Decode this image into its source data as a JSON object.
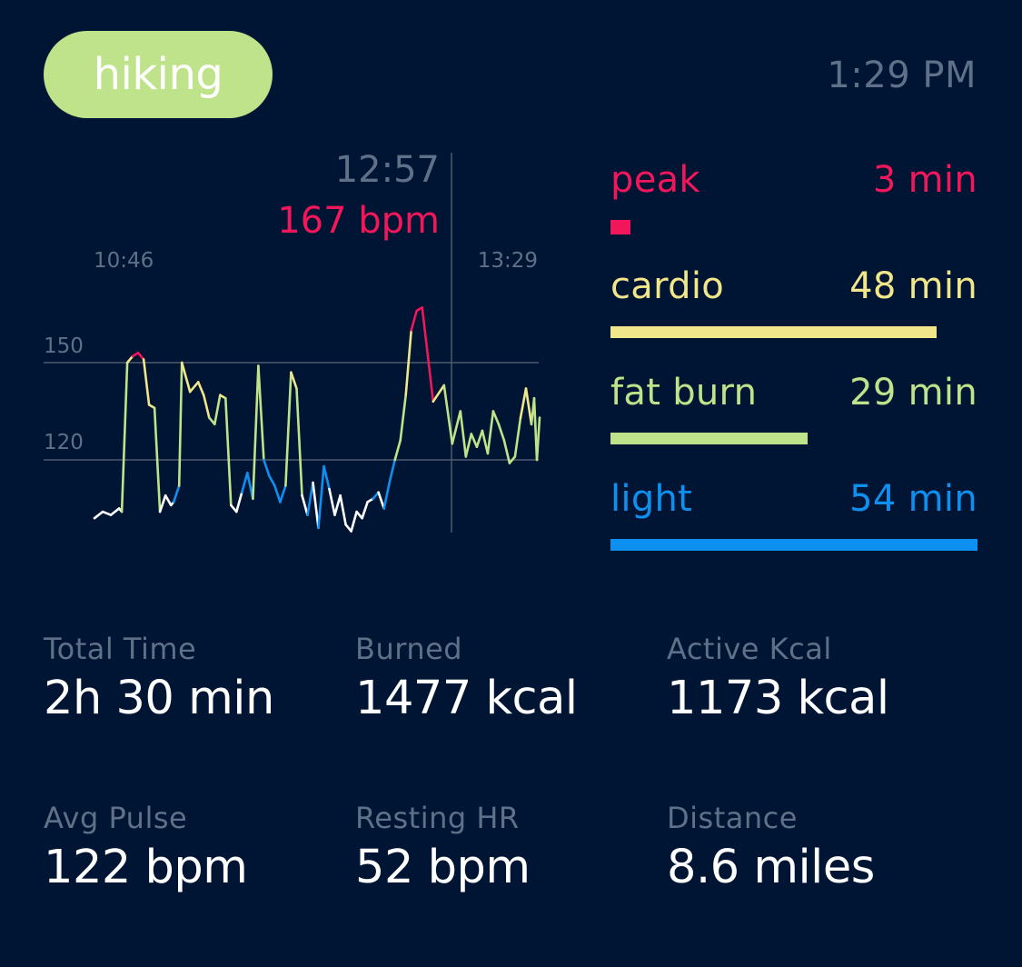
{
  "header": {
    "activity": "hiking",
    "time": "1:29 PM"
  },
  "colors": {
    "background": "#001533",
    "peak": "#f2165a",
    "cardio": "#f2e68a",
    "fat_burn": "#bee38a",
    "light": "#0e90f0",
    "below": "#ffffff",
    "muted": "#5f7188",
    "grid": "#4a5b70"
  },
  "zones": [
    {
      "id": "peak",
      "label": "peak",
      "value": "3 min",
      "minutes": 3,
      "color": "#f2165a"
    },
    {
      "id": "cardio",
      "label": "cardio",
      "value": "48 min",
      "minutes": 48,
      "color": "#f2e68a"
    },
    {
      "id": "fat-burn",
      "label": "fat burn",
      "value": "29 min",
      "minutes": 29,
      "color": "#bee38a"
    },
    {
      "id": "light",
      "label": "light",
      "value": "54 min",
      "minutes": 54,
      "color": "#0e90f0"
    }
  ],
  "stats": [
    {
      "id": "total-time",
      "label": "Total Time",
      "value": "2h 30 min"
    },
    {
      "id": "burned",
      "label": "Burned",
      "value": "1477 kcal"
    },
    {
      "id": "active-kcal",
      "label": "Active Kcal",
      "value": "1173 kcal"
    },
    {
      "id": "avg-pulse",
      "label": "Avg Pulse",
      "value": "122 bpm"
    },
    {
      "id": "resting-hr",
      "label": "Resting HR",
      "value": "52 bpm"
    },
    {
      "id": "distance",
      "label": "Distance",
      "value": "8.6 miles"
    }
  ],
  "chart_data": {
    "type": "line",
    "x_start_label": "10:46",
    "x_end_label": "13:29",
    "marker": {
      "time": "12:57",
      "value_label": "167 bpm",
      "bpm": 167
    },
    "y_ticks": [
      150,
      120
    ],
    "ylim": [
      98,
      175
    ],
    "zone_thresholds": {
      "peak": 152,
      "cardio": 136,
      "fat_burn": 120,
      "light": 108
    },
    "x_minutes": [
      0,
      3,
      6,
      9,
      10,
      12,
      14,
      16,
      18,
      20,
      22,
      24,
      26,
      28,
      29,
      31,
      32,
      34,
      35,
      38,
      40,
      42,
      44,
      46,
      48,
      50,
      52,
      54,
      56,
      58,
      60,
      62,
      64,
      66,
      68,
      70,
      72,
      74,
      76,
      78,
      80,
      82,
      84,
      86,
      88,
      90,
      92,
      94,
      96,
      98,
      100,
      102,
      104,
      106,
      108,
      110,
      112,
      114,
      116,
      118,
      120,
      124,
      128,
      131,
      134,
      136,
      138,
      140,
      142,
      144,
      146,
      148,
      150,
      152,
      154,
      156,
      158,
      160,
      161,
      162,
      163
    ],
    "bpm": [
      102,
      104,
      103,
      105,
      104,
      150,
      152,
      153,
      151,
      137,
      136,
      104,
      109,
      106,
      107,
      112,
      150,
      144,
      141,
      144,
      140,
      133,
      131,
      140,
      139,
      106,
      104,
      110,
      116,
      108,
      149,
      120,
      115,
      112,
      107,
      112,
      147,
      142,
      109,
      103,
      113,
      99,
      118,
      111,
      103,
      109,
      100,
      98,
      104,
      102,
      107,
      108,
      110,
      105,
      113,
      120,
      126,
      140,
      160,
      166,
      167,
      138,
      143,
      125,
      135,
      121,
      128,
      124,
      129,
      122,
      135,
      131,
      126,
      119,
      121,
      133,
      142,
      131,
      139,
      120,
      133
    ]
  }
}
